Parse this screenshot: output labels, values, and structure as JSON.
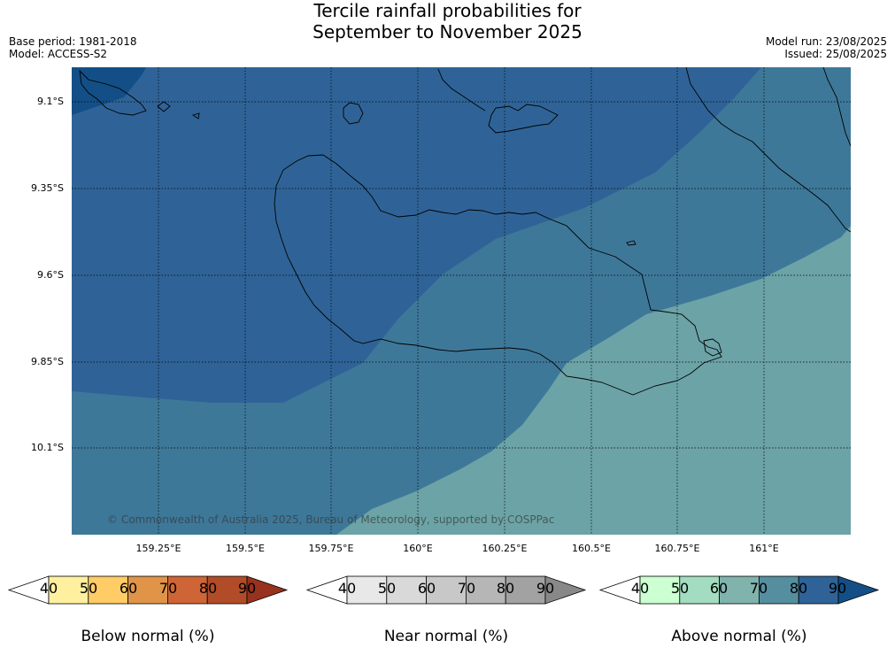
{
  "title_line1": "Tercile rainfall probabilities for",
  "title_line2": "September to November 2025",
  "base_period": "Base period: 1981-2018",
  "model": "Model: ACCESS-S2",
  "model_run": "Model run: 23/08/2025",
  "issued": "Issued: 25/08/2025",
  "copyright": "© Commonwealth of Australia 2025, Bureau of Meteorology, supported by COSPPac",
  "lat_labels": [
    "9.1°S",
    "9.35°S",
    "9.6°S",
    "9.85°S",
    "10.1°S"
  ],
  "lon_labels": [
    "159.25°E",
    "159.5°E",
    "159.75°E",
    "160°E",
    "160.25°E",
    "160.5°E",
    "160.75°E",
    "161°E"
  ],
  "colorbars": [
    {
      "title": "Below normal (%)",
      "ticks": [
        "40",
        "50",
        "60",
        "70",
        "80",
        "90"
      ],
      "colors": [
        "#ffffff",
        "#fff0a0",
        "#ffcc66",
        "#e09448",
        "#cf6536",
        "#b24c28",
        "#96321e"
      ]
    },
    {
      "title": "Near normal (%)",
      "ticks": [
        "40",
        "50",
        "60",
        "70",
        "80",
        "90"
      ],
      "colors": [
        "#ffffff",
        "#e8e8e8",
        "#d9d9d9",
        "#c8c8c8",
        "#b6b6b6",
        "#a2a2a2",
        "#888888"
      ]
    },
    {
      "title": "Above normal (%)",
      "ticks": [
        "40",
        "50",
        "60",
        "70",
        "80",
        "90"
      ],
      "colors": [
        "#ffffff",
        "#ccffd1",
        "#a3dcc0",
        "#7fb3ac",
        "#558f9f",
        "#2f6397",
        "#134f86"
      ]
    }
  ],
  "map_colors": {
    "above_80_90": "#2f6397",
    "above_90": "#134f86",
    "above_70_80": "#3e7899",
    "above_60_70": "#6ca3a6"
  }
}
